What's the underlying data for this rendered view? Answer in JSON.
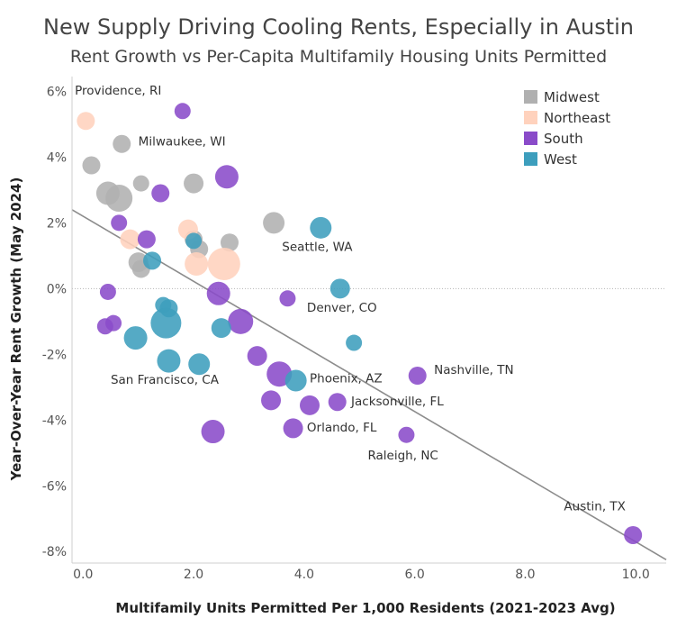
{
  "chart_data": {
    "type": "scatter",
    "title": "New Supply Driving Cooling Rents, Especially in Austin",
    "subtitle": "Rent Growth vs Per-Capita Multifamily Housing Units Permitted",
    "xlabel": "Multifamily Units Permitted Per 1,000 Residents (2021-2023 Avg)",
    "ylabel": "Year-Over-Year Rent Growth (May 2024)",
    "xlim": [
      -0.2,
      10.55
    ],
    "ylim": [
      -8.35,
      6.45
    ],
    "x_ticks": [
      0,
      2,
      4,
      6,
      8,
      10
    ],
    "x_tick_labels": [
      "0.0",
      "2.0",
      "4.0",
      "6.0",
      "8.0",
      "10.0"
    ],
    "y_ticks": [
      6,
      4,
      2,
      0,
      -2,
      -4,
      -6,
      -8
    ],
    "y_tick_labels": [
      "6%",
      "4%",
      "2%",
      "0%",
      "-2%",
      "-4%",
      "-6%",
      "-8%"
    ],
    "trendline": {
      "x1": -0.2,
      "y1": 2.4,
      "x2": 10.55,
      "y2": -8.25
    },
    "legend": {
      "placement": "top-right",
      "items": [
        {
          "label": "Midwest",
          "color": "#b0b0b0"
        },
        {
          "label": "Northeast",
          "color": "#ffd2bd"
        },
        {
          "label": "South",
          "color": "#8a4bc9"
        },
        {
          "label": "West",
          "color": "#3d9ebd"
        }
      ]
    },
    "series": [
      {
        "name": "Midwest",
        "color": "#b0b0b0",
        "points": [
          {
            "x": 0.15,
            "y": 3.75,
            "r": 10
          },
          {
            "x": 0.7,
            "y": 4.4,
            "r": 10
          },
          {
            "x": 0.45,
            "y": 2.9,
            "r": 13
          },
          {
            "x": 0.65,
            "y": 2.75,
            "r": 15
          },
          {
            "x": 1.05,
            "y": 3.2,
            "r": 9
          },
          {
            "x": 1.0,
            "y": 0.8,
            "r": 11
          },
          {
            "x": 1.05,
            "y": 0.6,
            "r": 10
          },
          {
            "x": 2.0,
            "y": 3.2,
            "r": 11
          },
          {
            "x": 2.0,
            "y": 1.5,
            "r": 10
          },
          {
            "x": 2.1,
            "y": 1.2,
            "r": 10
          },
          {
            "x": 2.65,
            "y": 1.4,
            "r": 10
          },
          {
            "x": 3.45,
            "y": 2.0,
            "r": 12
          }
        ]
      },
      {
        "name": "Northeast",
        "color": "#ffd2bd",
        "points": [
          {
            "x": 0.05,
            "y": 5.1,
            "r": 10
          },
          {
            "x": 0.85,
            "y": 1.5,
            "r": 11
          },
          {
            "x": 1.9,
            "y": 1.8,
            "r": 11
          },
          {
            "x": 2.05,
            "y": 0.75,
            "r": 13
          },
          {
            "x": 2.55,
            "y": 0.75,
            "r": 18
          }
        ]
      },
      {
        "name": "South",
        "color": "#8a4bc9",
        "points": [
          {
            "x": 1.8,
            "y": 5.4,
            "r": 9
          },
          {
            "x": 2.6,
            "y": 3.4,
            "r": 13
          },
          {
            "x": 1.4,
            "y": 2.9,
            "r": 10
          },
          {
            "x": 0.65,
            "y": 2.0,
            "r": 9
          },
          {
            "x": 1.15,
            "y": 1.5,
            "r": 10
          },
          {
            "x": 0.45,
            "y": -0.1,
            "r": 9
          },
          {
            "x": 0.4,
            "y": -1.15,
            "r": 9
          },
          {
            "x": 0.55,
            "y": -1.05,
            "r": 9
          },
          {
            "x": 2.45,
            "y": -0.15,
            "r": 13
          },
          {
            "x": 2.85,
            "y": -1.0,
            "r": 14
          },
          {
            "x": 3.7,
            "y": -0.3,
            "r": 9
          },
          {
            "x": 3.15,
            "y": -2.05,
            "r": 11
          },
          {
            "x": 3.55,
            "y": -2.6,
            "r": 14
          },
          {
            "x": 3.4,
            "y": -3.4,
            "r": 11
          },
          {
            "x": 4.1,
            "y": -3.55,
            "r": 11
          },
          {
            "x": 4.6,
            "y": -3.45,
            "r": 10
          },
          {
            "x": 3.8,
            "y": -4.25,
            "r": 11
          },
          {
            "x": 2.35,
            "y": -4.35,
            "r": 13
          },
          {
            "x": 5.85,
            "y": -4.45,
            "r": 9
          },
          {
            "x": 6.05,
            "y": -2.65,
            "r": 10
          },
          {
            "x": 9.95,
            "y": -7.5,
            "r": 10
          }
        ]
      },
      {
        "name": "West",
        "color": "#3d9ebd",
        "points": [
          {
            "x": 4.3,
            "y": 1.85,
            "r": 12
          },
          {
            "x": 4.65,
            "y": 0.0,
            "r": 11
          },
          {
            "x": 4.9,
            "y": -1.65,
            "r": 9
          },
          {
            "x": 1.25,
            "y": 0.85,
            "r": 10
          },
          {
            "x": 2.0,
            "y": 1.45,
            "r": 9
          },
          {
            "x": 1.45,
            "y": -0.5,
            "r": 9
          },
          {
            "x": 1.55,
            "y": -0.6,
            "r": 10
          },
          {
            "x": 1.5,
            "y": -1.05,
            "r": 17
          },
          {
            "x": 0.95,
            "y": -1.5,
            "r": 13
          },
          {
            "x": 2.5,
            "y": -1.2,
            "r": 11
          },
          {
            "x": 1.55,
            "y": -2.2,
            "r": 13
          },
          {
            "x": 2.1,
            "y": -2.3,
            "r": 12
          },
          {
            "x": 3.85,
            "y": -2.8,
            "r": 12
          }
        ]
      }
    ],
    "annotations": [
      {
        "text": "Providence, RI",
        "x": -0.15,
        "y": 5.9
      },
      {
        "text": "Milwaukee, WI",
        "x": 1.0,
        "y": 4.35
      },
      {
        "text": "Seattle, WA",
        "x": 3.6,
        "y": 1.15
      },
      {
        "text": "Denver, CO",
        "x": 4.05,
        "y": -0.7
      },
      {
        "text": "San Francisco, CA",
        "x": 0.5,
        "y": -2.9
      },
      {
        "text": "Phoenix, AZ",
        "x": 4.1,
        "y": -2.85
      },
      {
        "text": "Nashville, TN",
        "x": 6.35,
        "y": -2.6
      },
      {
        "text": "Jacksonville, FL",
        "x": 4.85,
        "y": -3.55
      },
      {
        "text": "Orlando, FL",
        "x": 4.05,
        "y": -4.35
      },
      {
        "text": "Raleigh, NC",
        "x": 5.15,
        "y": -5.2
      },
      {
        "text": "Austin, TX",
        "x": 8.7,
        "y": -6.75
      }
    ]
  }
}
